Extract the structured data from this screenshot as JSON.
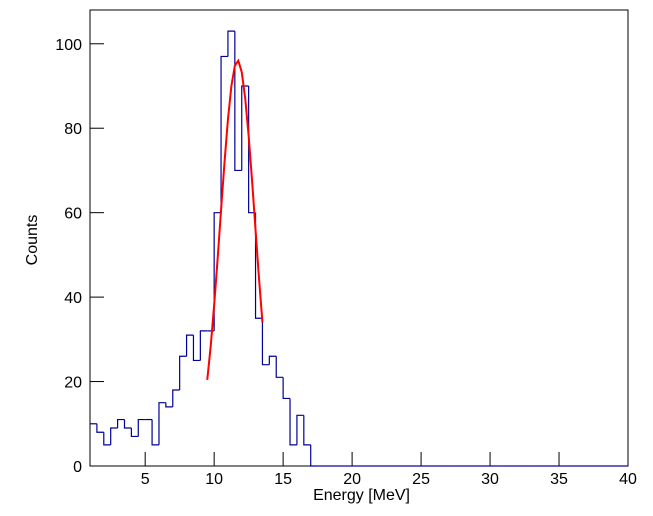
{
  "chart_data": {
    "type": "histogram",
    "xlabel": "Energy [MeV]",
    "ylabel": "Counts",
    "bins": [
      1,
      1.5,
      2,
      2.5,
      3,
      3.5,
      4,
      4.5,
      5,
      5.5,
      6,
      6.5,
      7,
      7.5,
      8,
      8.5,
      9,
      9.5,
      10,
      10.5,
      11,
      11.5,
      12,
      12.5,
      13,
      13.5,
      14,
      14.5,
      15,
      15.5,
      16,
      16.5,
      17,
      17.5,
      18,
      18.5,
      19,
      19.5,
      20,
      20.5,
      21,
      21.5,
      22,
      22.5,
      23,
      23.5,
      24,
      24.5,
      25,
      25.5,
      26,
      26.5,
      27,
      27.5,
      28,
      28.5,
      29,
      29.5,
      30,
      30.5,
      31,
      31.5,
      32,
      32.5,
      33,
      33.5,
      34,
      34.5,
      35,
      35.5,
      36,
      36.5,
      37,
      37.5,
      38,
      38.5,
      39,
      39.5,
      40
    ],
    "values": [
      10,
      8,
      5,
      9,
      11,
      9,
      7,
      11,
      11,
      5,
      15,
      14,
      18,
      26,
      31,
      25,
      32,
      32,
      60,
      97,
      103,
      70,
      90,
      60,
      35,
      24,
      26,
      21,
      16,
      5,
      12,
      5,
      0,
      0,
      0,
      0,
      0,
      0,
      0,
      0,
      0,
      0,
      0,
      0,
      0,
      0,
      0,
      0,
      0,
      0,
      0,
      0,
      0,
      0,
      0,
      0,
      0,
      0,
      0,
      0,
      0,
      0,
      0,
      0,
      0,
      0,
      0,
      0,
      0,
      0,
      0,
      0,
      0,
      0,
      0,
      0,
      0,
      0
    ],
    "color": "#000099",
    "fit": {
      "color": "#ff0000",
      "x": [
        9.5,
        9.75,
        10,
        10.25,
        10.5,
        10.75,
        11,
        11.25,
        11.5,
        11.75,
        12,
        12.25,
        12.5,
        12.75,
        13,
        13.25,
        13.5
      ],
      "values": [
        20.4,
        28.4,
        38.1,
        49.0,
        60.6,
        71.9,
        82.1,
        90.0,
        94.8,
        96.0,
        93.3,
        87.1,
        78.2,
        67.5,
        55.9,
        44.5,
        34.0
      ]
    },
    "xlim": [
      1,
      40
    ],
    "xticks": [
      5,
      10,
      15,
      20,
      25,
      30,
      35,
      40
    ],
    "ylim": [
      0,
      108
    ],
    "yticks": [
      0,
      20,
      40,
      60,
      80,
      100
    ]
  }
}
